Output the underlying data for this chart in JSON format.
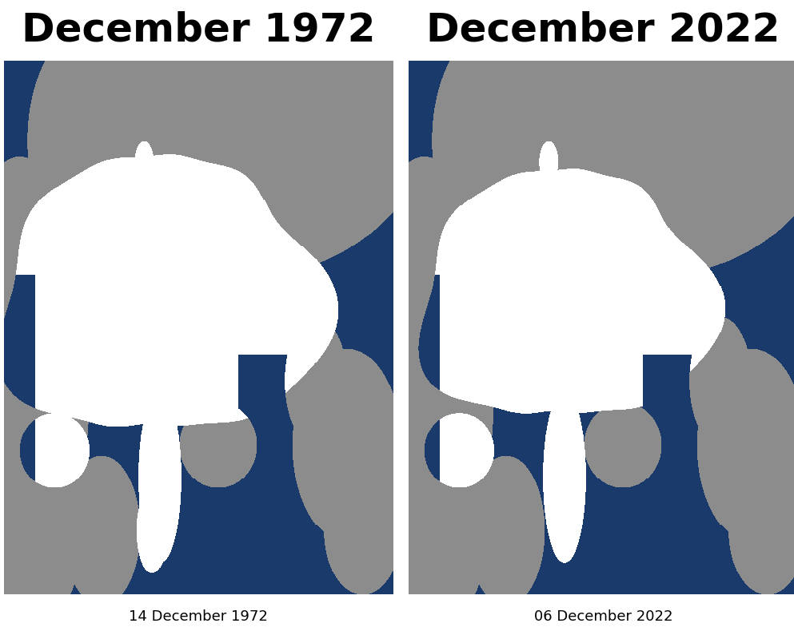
{
  "title_left": "December 1972",
  "title_right": "December 2022",
  "caption_left": "14 December 1972",
  "caption_right": "06 December 2022",
  "title_fontsize": 36,
  "caption_fontsize": 13,
  "bg_color": "#ffffff",
  "ocean_color": [
    26,
    58,
    107
  ],
  "land_color": [
    140,
    140,
    140
  ],
  "ice_color": [
    255,
    255,
    255
  ],
  "fig_width": 9.93,
  "fig_height": 8.0,
  "dpi": 100
}
